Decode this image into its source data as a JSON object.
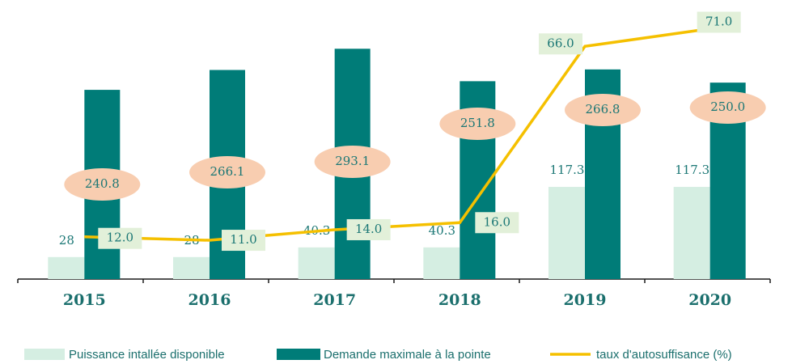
{
  "chart_data": {
    "type": "bar-line",
    "categories": [
      "2015",
      "2016",
      "2017",
      "2018",
      "2019",
      "2020"
    ],
    "ylim": [
      0,
      350
    ],
    "y2lim": [
      0,
      78
    ],
    "series": [
      {
        "name": "Puissance intallée disponible",
        "type": "bar",
        "color": "#d5eee2",
        "values": [
          28,
          28,
          40.3,
          40.3,
          117.3,
          117.3
        ]
      },
      {
        "name": "Demande maximale à la pointe",
        "type": "bar",
        "color": "#007c78",
        "values": [
          240.8,
          266.1,
          293.1,
          251.8,
          266.8,
          250.0
        ],
        "value_labels": [
          "240.8",
          "266.1",
          "293.1",
          "251.8",
          "266.8",
          "250.0"
        ]
      },
      {
        "name": "taux d'autosuffisance (%)",
        "type": "line",
        "axis": "y2",
        "color": "#f5c000",
        "values": [
          12.0,
          11.0,
          14.0,
          16.0,
          66.0,
          71.0
        ],
        "value_labels": [
          "12.0",
          "11.0",
          "14.0",
          "16.0",
          "66.0",
          "71.0"
        ]
      }
    ]
  }
}
